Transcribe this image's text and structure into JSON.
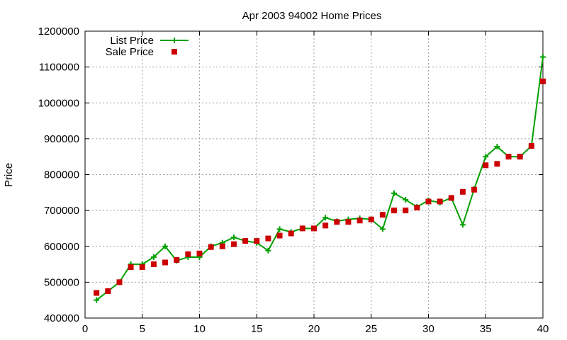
{
  "chart_data": {
    "type": "line",
    "title": "Apr 2003 94002 Home Prices",
    "xlabel": "",
    "ylabel": "Price",
    "xlim": [
      0,
      40
    ],
    "ylim": [
      400000,
      1200000
    ],
    "xticks": [
      0,
      5,
      10,
      15,
      20,
      25,
      30,
      35,
      40
    ],
    "yticks": [
      400000,
      500000,
      600000,
      700000,
      800000,
      900000,
      1000000,
      1100000,
      1200000
    ],
    "grid": true,
    "legend_position": "top-left",
    "series": [
      {
        "name": "List Price",
        "style": "line-plus",
        "color": "#00a000",
        "x": [
          1,
          2,
          3,
          4,
          5,
          6,
          7,
          8,
          9,
          10,
          11,
          12,
          13,
          14,
          15,
          16,
          17,
          18,
          19,
          20,
          21,
          22,
          23,
          24,
          25,
          26,
          27,
          28,
          29,
          30,
          31,
          32,
          33,
          34,
          35,
          36,
          37,
          38,
          39,
          40
        ],
        "y": [
          450000,
          475000,
          500000,
          550000,
          550000,
          570000,
          600000,
          560000,
          570000,
          570000,
          600000,
          610000,
          625000,
          615000,
          610000,
          588000,
          648000,
          640000,
          650000,
          650000,
          680000,
          670000,
          675000,
          678000,
          675000,
          648000,
          748000,
          730000,
          710000,
          728000,
          722000,
          735000,
          660000,
          760000,
          850000,
          878000,
          850000,
          850000,
          880000,
          1128000
        ]
      },
      {
        "name": "Sale Price",
        "style": "square",
        "color": "#cc0000",
        "x": [
          1,
          2,
          3,
          4,
          5,
          6,
          7,
          8,
          9,
          10,
          11,
          12,
          13,
          14,
          15,
          16,
          17,
          18,
          19,
          20,
          21,
          22,
          23,
          24,
          25,
          26,
          27,
          28,
          29,
          30,
          31,
          32,
          33,
          34,
          35,
          36,
          37,
          38,
          39,
          40
        ],
        "y": [
          470000,
          475000,
          500000,
          542000,
          542000,
          550000,
          555000,
          562000,
          578000,
          580000,
          598000,
          600000,
          606000,
          615000,
          615000,
          622000,
          630000,
          636000,
          650000,
          650000,
          658000,
          668000,
          668000,
          672000,
          675000,
          688000,
          700000,
          700000,
          708000,
          725000,
          725000,
          735000,
          752000,
          758000,
          826000,
          830000,
          850000,
          850000,
          880000,
          1060000
        ]
      }
    ]
  }
}
